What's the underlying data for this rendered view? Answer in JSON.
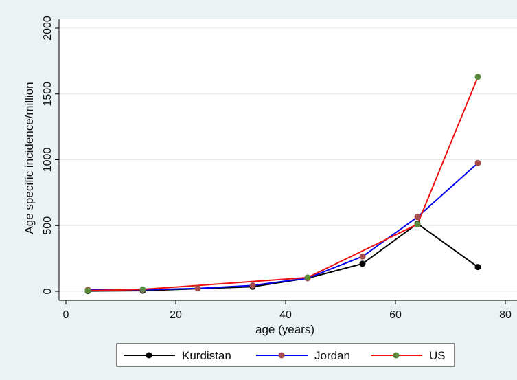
{
  "chart_data": {
    "type": "line",
    "title": "",
    "xlabel": "age (years)",
    "ylabel": "Age specific incidence/million",
    "xlim": [
      0,
      80
    ],
    "ylim": [
      0,
      2000
    ],
    "xticks": [
      0,
      20,
      40,
      60,
      80
    ],
    "yticks": [
      0,
      500,
      1000,
      1500,
      2000
    ],
    "grid": "horizontal",
    "legend_position": "bottom",
    "series": [
      {
        "name": "Kurdistan",
        "line_color": "#000000",
        "marker_color": "#000000",
        "x": [
          4,
          14,
          34,
          44,
          54,
          64,
          75
        ],
        "values": [
          2,
          5,
          35,
          100,
          210,
          515,
          185
        ]
      },
      {
        "name": "Jordan",
        "line_color": "#0000ee",
        "marker_color": "#a34d4d",
        "x": [
          4,
          14,
          24,
          34,
          44,
          54,
          64,
          75
        ],
        "values": [
          12,
          12,
          22,
          45,
          100,
          265,
          565,
          975
        ]
      },
      {
        "name": "US",
        "line_color": "#ee1111",
        "marker_color": "#5a8a3a",
        "x": [
          4,
          14,
          44,
          64,
          75
        ],
        "values": [
          5,
          15,
          105,
          510,
          1630
        ]
      }
    ]
  }
}
